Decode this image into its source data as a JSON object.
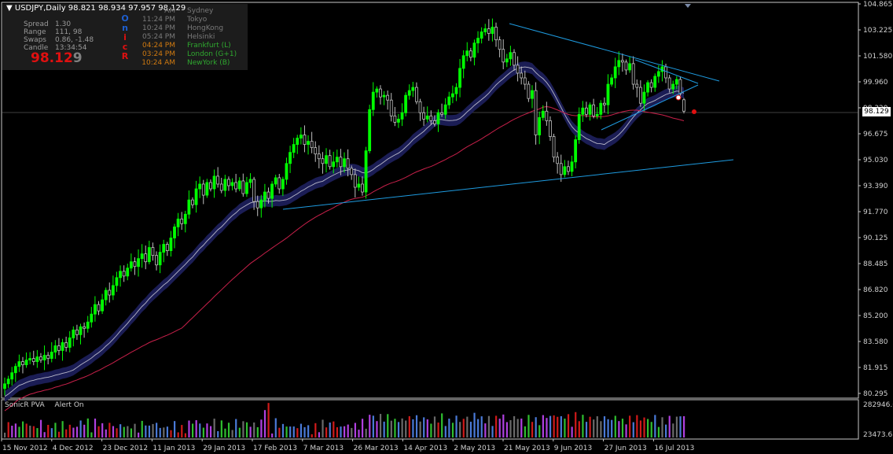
{
  "window": {
    "symbol_header": "USDJPY,Daily  98.821 98.934 97.957 98.129",
    "sonic_title": "USDJPY · Day"
  },
  "stats": [
    {
      "label": "Spread",
      "value": "1.30"
    },
    {
      "label": "Range",
      "value": "111, 98"
    },
    {
      "label": "Swaps",
      "value": "0.86, -1.48"
    },
    {
      "label": "Candle",
      "value": "13:34:54"
    }
  ],
  "big_price": {
    "main": "98.12",
    "last_digit": "9"
  },
  "sonic_letters": [
    {
      "letter": "O",
      "color": "#1e5fd0"
    },
    {
      "letter": "n",
      "color": "#1e5fd0"
    },
    {
      "letter": "i",
      "color": "#e01010"
    },
    {
      "letter": "c",
      "color": "#e01010"
    },
    {
      "letter": "R",
      "color": "#e01010"
    }
  ],
  "sessions": [
    {
      "time": "AM",
      "name": "Sydney",
      "color": "#7a7a7a"
    },
    {
      "time": "11:24 PM",
      "name": "Tokyo",
      "color": "#7a7a7a"
    },
    {
      "time": "10:24 PM",
      "name": "HongKong",
      "color": "#7a7a7a"
    },
    {
      "time": "05:24 PM",
      "name": "Helsinki",
      "color": "#7a7a7a"
    },
    {
      "time": "04:24 PM",
      "name": "Frankfurt  (L)",
      "color": "#2fa82f",
      "time_color": "#d07a10"
    },
    {
      "time": "03:24 PM",
      "name": "London  (G+1)",
      "color": "#2fa82f",
      "time_color": "#d07a10"
    },
    {
      "time": "10:24 AM",
      "name": "NewYork  (B)",
      "color": "#2fa82f",
      "time_color": "#d07a10"
    }
  ],
  "indicator": {
    "name": "SonicR PVA",
    "alert": "Alert On",
    "scale_top": "282946.6",
    "scale_bottom": "23473.6"
  },
  "current_price_label": "98.129",
  "colors": {
    "bull": "#00ff00",
    "bear": "#c0c0c0",
    "band": "#1c1f5a",
    "ma_slow": "#c8204a",
    "trend": "#1e9be0"
  },
  "chart_data": {
    "type": "candlestick",
    "symbol": "USDJPY",
    "timeframe": "Daily",
    "y_ticks": [
      "104.865",
      "103.225",
      "101.580",
      "99.960",
      "98.320",
      "96.675",
      "95.030",
      "93.390",
      "91.770",
      "90.125",
      "88.485",
      "86.820",
      "85.200",
      "83.580",
      "81.915",
      "80.295"
    ],
    "ylim": [
      80.295,
      104.865
    ],
    "x_ticks": [
      "15 Nov 2012",
      "4 Dec 2012",
      "23 Dec 2012",
      "11 Jan 2013",
      "29 Jan 2013",
      "17 Feb 2013",
      "7 Mar 2013",
      "26 Mar 2013",
      "14 Apr 2013",
      "2 May 2013",
      "21 May 2013",
      "9 Jun 2013",
      "27 Jun 2013",
      "16 Jul 2013"
    ],
    "last_ohlc": {
      "open": 98.821,
      "high": 98.934,
      "low": 97.957,
      "close": 98.129
    },
    "closes": [
      80.9,
      81.2,
      81.6,
      82.0,
      82.3,
      82.1,
      82.4,
      82.5,
      82.3,
      82.6,
      82.4,
      82.7,
      82.5,
      82.9,
      83.3,
      83.0,
      83.5,
      83.2,
      83.8,
      84.3,
      84.0,
      84.5,
      84.4,
      84.8,
      85.3,
      85.9,
      85.5,
      86.2,
      86.8,
      86.5,
      87.1,
      87.6,
      88.0,
      87.7,
      88.2,
      88.6,
      88.3,
      88.8,
      89.1,
      88.6,
      89.5,
      89.0,
      88.4,
      89.2,
      89.7,
      89.3,
      90.1,
      90.8,
      91.3,
      91.0,
      91.6,
      92.5,
      92.2,
      93.2,
      93.5,
      92.8,
      93.6,
      93.2,
      94.0,
      93.5,
      93.1,
      93.8,
      93.4,
      93.6,
      93.2,
      93.7,
      92.9,
      93.6,
      93.8,
      92.4,
      92.0,
      92.5,
      93.0,
      92.6,
      93.5,
      93.9,
      93.2,
      93.8,
      94.8,
      95.5,
      96.0,
      96.4,
      96.6,
      96.0,
      96.2,
      95.8,
      95.4,
      95.1,
      94.8,
      95.3,
      94.6,
      94.9,
      95.2,
      94.6,
      95.1,
      94.5,
      94.1,
      93.3,
      93.5,
      93.0,
      95.6,
      98.2,
      99.3,
      99.5,
      99.0,
      99.1,
      98.8,
      97.8,
      97.4,
      97.6,
      98.0,
      99.1,
      99.4,
      99.6,
      98.7,
      98.0,
      97.6,
      97.8,
      97.5,
      97.3,
      98.0,
      97.9,
      98.5,
      99.0,
      99.2,
      99.6,
      100.8,
      101.6,
      101.9,
      101.5,
      102.4,
      102.7,
      103.1,
      103.3,
      103.0,
      103.4,
      102.6,
      102.0,
      101.2,
      101.4,
      101.8,
      101.0,
      100.5,
      100.2,
      99.8,
      98.9,
      99.4,
      96.6,
      97.7,
      98.1,
      97.5,
      96.5,
      95.2,
      94.8,
      94.1,
      94.6,
      94.3,
      94.9,
      96.3,
      97.9,
      98.3,
      97.9,
      98.5,
      97.8,
      97.9,
      98.6,
      98.5,
      99.8,
      100.2,
      100.9,
      101.3,
      101.2,
      100.7,
      101.1,
      99.8,
      99.6,
      98.6,
      99.3,
      99.9,
      99.6,
      100.3,
      100.6,
      100.9,
      100.2,
      99.5,
      99.8,
      100.1,
      99.2,
      98.1
    ],
    "indicator_name": "SonicR PVA"
  }
}
